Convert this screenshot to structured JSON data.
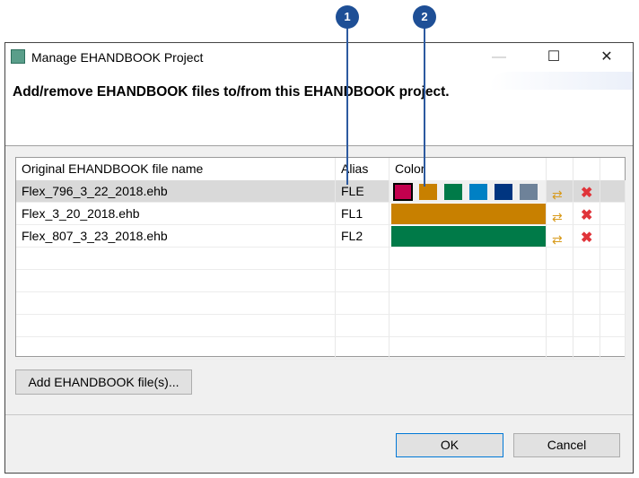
{
  "window": {
    "title": "Manage EHANDBOOK Project",
    "minimize": "—",
    "maximize": "☐",
    "close": "✕"
  },
  "heading": "Add/remove EHANDBOOK files to/from this EHANDBOOK project.",
  "table": {
    "columns": [
      "Original EHANDBOOK file name",
      "Alias",
      "Color"
    ],
    "rows": [
      {
        "name": "Flex_796_3_22_2018.ehb",
        "alias": "FLE",
        "color": "#c8004f",
        "selected": true
      },
      {
        "name": "Flex_3_20_2018.ehb",
        "alias": "FL1",
        "color": "#c88000"
      },
      {
        "name": "Flex_807_3_23_2018.ehb",
        "alias": "FL2",
        "color": "#007a48"
      }
    ],
    "palette": [
      "#c2004e",
      "#c88000",
      "#007a48",
      "#0080c4",
      "#003580",
      "#6e8299"
    ]
  },
  "buttons": {
    "add": "Add EHANDBOOK file(s)...",
    "ok": "OK",
    "cancel": "Cancel"
  },
  "callouts": [
    "1",
    "2"
  ],
  "icons": {
    "refresh": "⇄",
    "delete": "✖"
  }
}
